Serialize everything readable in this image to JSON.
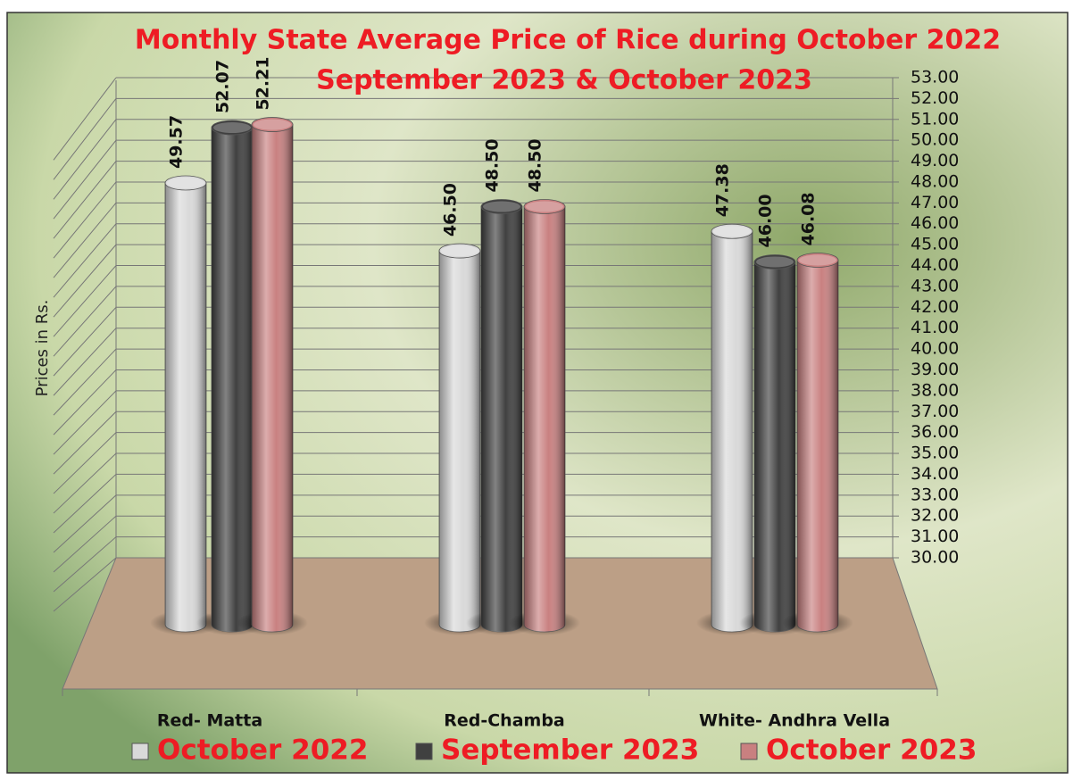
{
  "chart_data": {
    "type": "bar3d",
    "title": [
      "Monthly State Average Price of Rice during  October 2022",
      "September  2023  &  October 2023"
    ],
    "y_label": "Prices in Rs.",
    "categories": [
      "Red- Matta",
      "Red-Chamba",
      "White- Andhra Vella"
    ],
    "series": [
      {
        "name": "October 2022",
        "color": "#d9d9d9",
        "values": [
          49.57,
          46.5,
          47.38
        ],
        "value_labels": [
          "49.57",
          "46.50",
          "47.38"
        ]
      },
      {
        "name": "September 2023",
        "color": "#404040",
        "values": [
          52.07,
          48.5,
          46.0
        ],
        "value_labels": [
          "52.07",
          "48.50",
          "46.00"
        ]
      },
      {
        "name": "October 2023",
        "color": "#c98080",
        "values": [
          52.21,
          48.5,
          46.08
        ],
        "value_labels": [
          "52.21",
          "48.50",
          "46.08"
        ]
      }
    ],
    "ylim": [
      30,
      53
    ],
    "yticks": [
      {
        "value": 30,
        "label": "30.00"
      },
      {
        "value": 31,
        "label": "31.00"
      },
      {
        "value": 32,
        "label": "32.00"
      },
      {
        "value": 33,
        "label": "33.00"
      },
      {
        "value": 34,
        "label": "34.00"
      },
      {
        "value": 35,
        "label": "35.00"
      },
      {
        "value": 36,
        "label": "36.00"
      },
      {
        "value": 37,
        "label": "37.00"
      },
      {
        "value": 38,
        "label": "38.00"
      },
      {
        "value": 39,
        "label": "39.00"
      },
      {
        "value": 40,
        "label": "40.00"
      },
      {
        "value": 41,
        "label": "41.00"
      },
      {
        "value": 42,
        "label": "42.00"
      },
      {
        "value": 43,
        "label": "43.00"
      },
      {
        "value": 44,
        "label": "44.00"
      },
      {
        "value": 45,
        "label": "45.00"
      },
      {
        "value": 46,
        "label": "46.00"
      },
      {
        "value": 47,
        "label": "47.00"
      },
      {
        "value": 48,
        "label": "48.00"
      },
      {
        "value": 49,
        "label": "49.00"
      },
      {
        "value": 50,
        "label": "50.00"
      },
      {
        "value": 51,
        "label": "51.00"
      },
      {
        "value": 52,
        "label": "52.00"
      },
      {
        "value": 53,
        "label": "53.00"
      }
    ],
    "grid": true,
    "legend": "bottom"
  }
}
